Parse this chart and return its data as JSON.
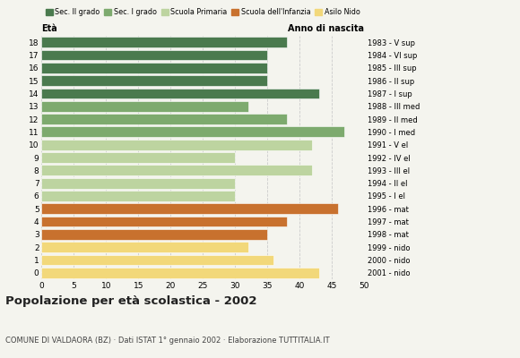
{
  "ages": [
    18,
    17,
    16,
    15,
    14,
    13,
    12,
    11,
    10,
    9,
    8,
    7,
    6,
    5,
    4,
    3,
    2,
    1,
    0
  ],
  "values": [
    38,
    35,
    35,
    35,
    43,
    32,
    38,
    47,
    42,
    30,
    42,
    30,
    30,
    46,
    38,
    35,
    32,
    36,
    43
  ],
  "right_labels": [
    "1983 - V sup",
    "1984 - VI sup",
    "1985 - III sup",
    "1986 - II sup",
    "1987 - I sup",
    "1988 - III med",
    "1989 - II med",
    "1990 - I med",
    "1991 - V el",
    "1992 - IV el",
    "1993 - III el",
    "1994 - II el",
    "1995 - I el",
    "1996 - mat",
    "1997 - mat",
    "1998 - mat",
    "1999 - nido",
    "2000 - nido",
    "2001 - nido"
  ],
  "colors": [
    "#4a7a4e",
    "#4a7a4e",
    "#4a7a4e",
    "#4a7a4e",
    "#4a7a4e",
    "#7daa6e",
    "#7daa6e",
    "#7daa6e",
    "#bdd4a0",
    "#bdd4a0",
    "#bdd4a0",
    "#bdd4a0",
    "#bdd4a0",
    "#c8712e",
    "#c8712e",
    "#c8712e",
    "#f2d87a",
    "#f2d87a",
    "#f2d87a"
  ],
  "legend_labels": [
    "Sec. II grado",
    "Sec. I grado",
    "Scuola Primaria",
    "Scuola dell'Infanzia",
    "Asilo Nido"
  ],
  "legend_colors": [
    "#4a7a4e",
    "#7daa6e",
    "#bdd4a0",
    "#c8712e",
    "#f2d87a"
  ],
  "title": "Popolazione per età scolastica - 2002",
  "subtitle": "COMUNE DI VALDAORA (BZ) · Dati ISTAT 1° gennaio 2002 · Elaborazione TUTTITALIA.IT",
  "xlabel_left": "Età",
  "xlabel_right": "Anno di nascita",
  "xlim": [
    0,
    50
  ],
  "xticks": [
    0,
    5,
    10,
    15,
    20,
    25,
    30,
    35,
    40,
    45,
    50
  ],
  "bg_color": "#f4f4ee",
  "bar_height": 0.82,
  "grid_color": "#cccccc"
}
